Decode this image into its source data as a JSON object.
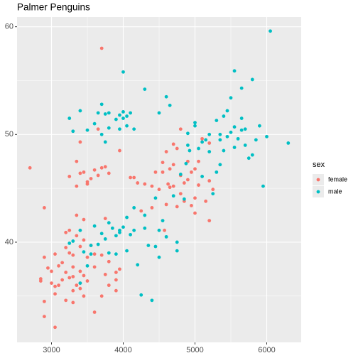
{
  "chart_data": {
    "type": "scatter",
    "title": "Palmer Penguins",
    "legend_title": "sex",
    "legend_position": "right",
    "xlim": [
      2520,
      6480
    ],
    "ylim": [
      30.7,
      60.9
    ],
    "xticks": [
      3000,
      4000,
      5000,
      6000
    ],
    "yticks": [
      40,
      50,
      60
    ],
    "xminor": [
      3500,
      4500,
      5500
    ],
    "yminor": [
      35,
      45,
      55
    ],
    "grid": true,
    "series": [
      {
        "name": "female",
        "color": "#F8766D",
        "x": [
          2700,
          2900,
          3700,
          2850,
          2850,
          2900,
          2900,
          3050,
          2900,
          2950,
          3000,
          3000,
          3050,
          3050,
          3050,
          3100,
          3100,
          3150,
          3150,
          3200,
          3200,
          3200,
          3200,
          3250,
          3250,
          3250,
          3250,
          3300,
          3300,
          3300,
          3300,
          3300,
          3350,
          3350,
          3350,
          3350,
          3350,
          3400,
          3400,
          3400,
          3400,
          3400,
          3400,
          3450,
          3450,
          3450,
          3450,
          3450,
          3500,
          3500,
          3500,
          3500,
          3550,
          3550,
          3600,
          3600,
          3600,
          3600,
          3650,
          3650,
          3700,
          3700,
          3700,
          3750,
          3750,
          3750,
          3800,
          3800,
          3800,
          3900,
          3900,
          3900,
          3950,
          3950,
          4100,
          4150,
          4200,
          4250,
          4300,
          4400,
          4400,
          4450,
          4500,
          4550,
          4550,
          4600,
          4600,
          4650,
          4650,
          4700,
          4700,
          4700,
          4750,
          4750,
          4800,
          4800,
          4850,
          4850,
          4900,
          4900,
          4950,
          4950,
          5000,
          5000,
          5000,
          5050,
          5050,
          5100,
          5150,
          5200,
          5200,
          5250,
          5200,
          4625,
          4575,
          4800
        ],
        "values": [
          46.9,
          43.2,
          58.0,
          36.4,
          36.6,
          34.5,
          33.1,
          32.1,
          38.6,
          37.6,
          36.2,
          37.3,
          35.9,
          38.9,
          35.2,
          36.0,
          37.8,
          36.5,
          38.1,
          34.6,
          37.2,
          39.5,
          40.9,
          39.0,
          36.7,
          41.1,
          46.1,
          38.8,
          35.5,
          36.8,
          34.4,
          37.7,
          36.0,
          40.6,
          42.5,
          45.2,
          47.5,
          39.6,
          35.7,
          36.2,
          37.3,
          46.4,
          49.3,
          35.0,
          36.9,
          40.2,
          42.1,
          46.5,
          36.4,
          38.6,
          45.6,
          45.4,
          39.7,
          45.9,
          46.7,
          33.5,
          37.7,
          38.9,
          46.2,
          50.5,
          35.0,
          38.8,
          46.9,
          37.0,
          47.0,
          42.2,
          36.0,
          46.4,
          38.2,
          37.2,
          35.5,
          36.5,
          48.5,
          37.5,
          46.0,
          46.0,
          45.5,
          42.9,
          45.4,
          43.2,
          45.2,
          46.5,
          44.9,
          46.5,
          47.4,
          48.4,
          43.5,
          45.1,
          46.8,
          49.1,
          45.2,
          47.2,
          43.3,
          48.7,
          44.5,
          46.2,
          45.5,
          43.8,
          45.8,
          47.5,
          43.4,
          46.5,
          44.1,
          46.8,
          42.7,
          47.5,
          45.3,
          49.6,
          43.8,
          45.7,
          49.2,
          44.9,
          42.0,
          45.4,
          41.1,
          50.5
        ]
      },
      {
        "name": "male",
        "color": "#00BFC4",
        "x": [
          3250,
          3300,
          3400,
          3300,
          3250,
          3400,
          3450,
          3400,
          3500,
          3550,
          3550,
          3500,
          3600,
          3650,
          3700,
          3750,
          3700,
          3750,
          3800,
          3800,
          3900,
          3950,
          4000,
          4050,
          4050,
          4100,
          4150,
          3600,
          3650,
          3700,
          3750,
          3800,
          3800,
          3850,
          3900,
          3900,
          3950,
          3950,
          4000,
          4000,
          4050,
          4050,
          4100,
          4150,
          4150,
          4200,
          4250,
          4300,
          4300,
          4350,
          4400,
          4450,
          4450,
          4500,
          4500,
          4550,
          4600,
          4600,
          4650,
          4700,
          4750,
          4750,
          4800,
          4850,
          4900,
          4900,
          5000,
          5000,
          5050,
          5100,
          5150,
          5200,
          5200,
          5250,
          5300,
          5300,
          5350,
          5350,
          5400,
          5400,
          5450,
          5450,
          5500,
          5500,
          5550,
          5550,
          5550,
          5600,
          5650,
          5650,
          5700,
          5700,
          5750,
          5800,
          5800,
          5850,
          5900,
          5950,
          6000,
          6050,
          6300,
          4875,
          5100,
          5350,
          5650,
          4925,
          4300,
          4500,
          3950,
          4000
        ],
        "values": [
          51.5,
          50.3,
          52.2,
          40.1,
          39.9,
          41.1,
          39.1,
          36.2,
          37.8,
          38.9,
          39.7,
          50.4,
          51.0,
          52.0,
          52.8,
          51.9,
          50.0,
          49.3,
          52.0,
          50.6,
          51.4,
          51.8,
          52.1,
          50.8,
          51.7,
          52.0,
          50.5,
          41.5,
          39.8,
          40.8,
          40.3,
          41.8,
          39.0,
          41.3,
          40.6,
          38.9,
          41.1,
          40.9,
          55.8,
          41.4,
          42.3,
          39.2,
          40.7,
          41.1,
          43.2,
          37.9,
          35.1,
          42.5,
          41.3,
          39.7,
          34.6,
          39.6,
          44.1,
          41.1,
          38.6,
          42.0,
          40.5,
          53.5,
          52.7,
          44.3,
          39.2,
          40.0,
          46.3,
          44.0,
          50.1,
          49.0,
          51.1,
          50.8,
          48.7,
          46.1,
          49.5,
          50.0,
          48.4,
          44.5,
          46.5,
          51.3,
          50.0,
          49.5,
          51.7,
          48.5,
          52.2,
          49.8,
          50.2,
          53.4,
          48.8,
          50.7,
          55.9,
          49.6,
          50.4,
          54.3,
          50.5,
          49.0,
          47.8,
          48.1,
          55.1,
          49.5,
          50.8,
          45.2,
          49.8,
          59.6,
          49.2,
          47.3,
          49.3,
          47.2,
          51.5,
          48.5,
          54.2,
          52.0,
          50.5,
          51.5
        ]
      }
    ]
  }
}
